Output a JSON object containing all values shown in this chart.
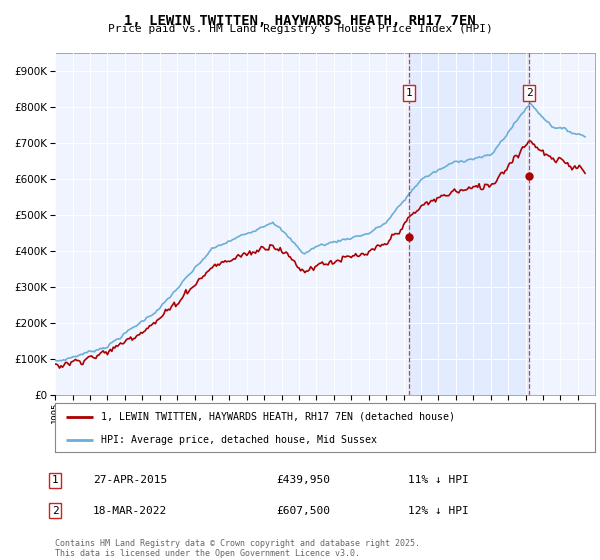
{
  "title": "1, LEWIN TWITTEN, HAYWARDS HEATH, RH17 7EN",
  "subtitle": "Price paid vs. HM Land Registry's House Price Index (HPI)",
  "legend_line1": "1, LEWIN TWITTEN, HAYWARDS HEATH, RH17 7EN (detached house)",
  "legend_line2": "HPI: Average price, detached house, Mid Sussex",
  "marker1_date": "27-APR-2015",
  "marker1_price": 439950,
  "marker1_note": "11% ↓ HPI",
  "marker2_date": "18-MAR-2022",
  "marker2_price": 607500,
  "marker2_note": "12% ↓ HPI",
  "footer": "Contains HM Land Registry data © Crown copyright and database right 2025.\nThis data is licensed under the Open Government Licence v3.0.",
  "hpi_color": "#6BAED6",
  "hpi_fill": "#DDEEFF",
  "price_color": "#AA0000",
  "marker_color": "#AA0000",
  "bg_color": "#F0F4FF",
  "ylim": [
    0,
    950000
  ],
  "yticks": [
    0,
    100000,
    200000,
    300000,
    400000,
    500000,
    600000,
    700000,
    800000,
    900000
  ],
  "marker1_year": 2015.32,
  "marker2_year": 2022.21
}
